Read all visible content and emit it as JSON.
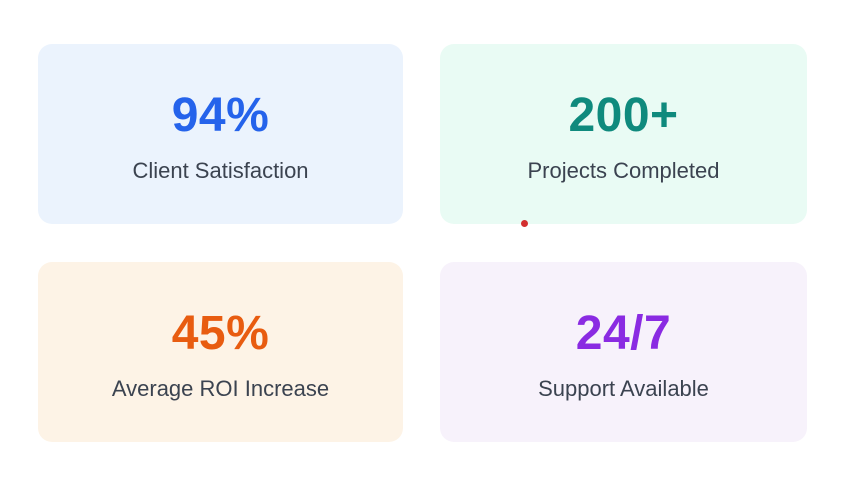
{
  "stats": [
    {
      "value": "94%",
      "label": "Client Satisfaction",
      "value_color": "#2563eb",
      "bg_color": "#ebf3fd"
    },
    {
      "value": "200+",
      "label": "Projects Completed",
      "value_color": "#0f8a7d",
      "bg_color": "#e9fbf4"
    },
    {
      "value": "45%",
      "label": "Average ROI Increase",
      "value_color": "#e85c10",
      "bg_color": "#fdf3e6"
    },
    {
      "value": "24/7",
      "label": "Support Available",
      "value_color": "#8a2be2",
      "bg_color": "#f7f2fb"
    }
  ],
  "label_color": "#3b4350",
  "indicator": {
    "type": "red-dot",
    "color": "#d32f2f"
  }
}
